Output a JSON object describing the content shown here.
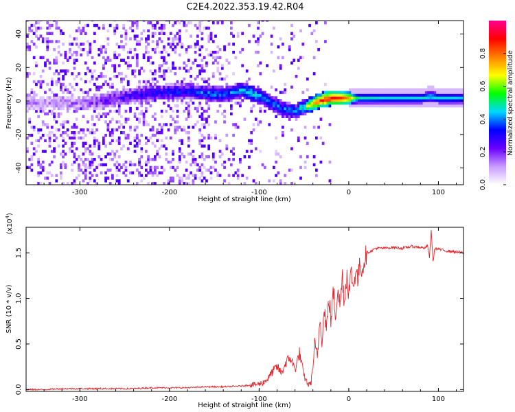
{
  "title": "C2E4.2022.353.19.42.R04",
  "chart_data": [
    {
      "type": "heatmap",
      "xlabel": "Height of straight line (km)",
      "ylabel": "Frequency (Hz)",
      "xlim": [
        -360,
        128
      ],
      "ylim": [
        -50,
        48
      ],
      "xticks": [
        -300,
        -200,
        -100,
        0,
        100
      ],
      "yticks": [
        -40,
        -20,
        0,
        20,
        40
      ],
      "xtick_labels": [
        "-300",
        "-200",
        "-100",
        "0",
        "100"
      ],
      "ytick_labels": [
        "-40",
        "-20",
        "0",
        "20",
        "40"
      ],
      "ridge_x": [
        -330,
        -300,
        -280,
        -260,
        -240,
        -220,
        -200,
        -180,
        -160,
        -140,
        -120,
        -110,
        -100,
        -90,
        -80,
        -70,
        -60,
        -55,
        -50,
        -45,
        -40,
        -35,
        -30,
        -20,
        -10,
        0,
        10,
        20,
        40,
        60,
        80,
        90,
        100,
        110,
        128
      ],
      "ridge_y": [
        -2,
        -2,
        -1,
        1,
        3,
        4,
        5,
        5,
        4,
        3,
        6,
        4,
        2,
        -1,
        -4,
        -6,
        -7,
        -5,
        -4,
        -3,
        -2,
        -1,
        0,
        1,
        1,
        1,
        1,
        1,
        1,
        1,
        1,
        2,
        1,
        1,
        1
      ],
      "ridge_amplitude": [
        0.12,
        0.15,
        0.2,
        0.25,
        0.3,
        0.32,
        0.35,
        0.35,
        0.4,
        0.42,
        0.45,
        0.5,
        0.45,
        0.42,
        0.4,
        0.4,
        0.42,
        0.5,
        0.55,
        0.7,
        0.8,
        0.85,
        0.9,
        0.92,
        0.88,
        0.75,
        0.5,
        0.5,
        0.48,
        0.48,
        0.48,
        0.5,
        0.48,
        0.48,
        0.45
      ],
      "colorbar": {
        "label": "Normalized spectral amplitude",
        "range": [
          0,
          1
        ],
        "ticks": [
          0.0,
          0.2,
          0.4,
          0.6,
          0.8
        ],
        "tick_labels": [
          "0.0",
          "0.2",
          "0.4",
          "0.6",
          "0.8"
        ],
        "colors": [
          "#ffffff",
          "#c89cff",
          "#6a00ff",
          "#0000ff",
          "#00d8ff",
          "#00ff00",
          "#ffff00",
          "#ff8000",
          "#ff0000",
          "#ff0090"
        ]
      },
      "grid": false
    },
    {
      "type": "line",
      "xlabel": "Height of straight line (km)",
      "ylabel": "SNR (10 * v/v)",
      "y_multiplier": "(x10",
      "y_multiplier_exp": "4",
      "y_multiplier_close": ")",
      "xlim": [
        -360,
        128
      ],
      "ylim": [
        -0.02,
        1.78
      ],
      "xticks": [
        -300,
        -200,
        -100,
        0,
        100
      ],
      "yticks": [
        0.0,
        0.5,
        1.0,
        1.5
      ],
      "xtick_labels": [
        "-300",
        "-200",
        "-100",
        "0",
        "100"
      ],
      "ytick_labels": [
        "0.0",
        "0.5",
        "1.0",
        "1.5"
      ],
      "series": [
        {
          "color": "#e8242a",
          "x": [
            -360,
            -340,
            -320,
            -300,
            -280,
            -260,
            -240,
            -220,
            -200,
            -180,
            -160,
            -140,
            -120,
            -110,
            -100,
            -95,
            -90,
            -85,
            -80,
            -75,
            -70,
            -65,
            -60,
            -55,
            -50,
            -45,
            -42,
            -40,
            -38,
            -35,
            -32,
            -30,
            -27,
            -25,
            -22,
            -20,
            -17,
            -15,
            -12,
            -10,
            -7,
            -5,
            -2,
            0,
            3,
            5,
            8,
            10,
            13,
            15,
            18,
            20,
            25,
            30,
            40,
            50,
            60,
            70,
            80,
            85,
            88,
            90,
            92,
            94,
            96,
            100,
            110,
            120,
            128
          ],
          "values": [
            0.0,
            0.0,
            0.01,
            0.01,
            0.01,
            0.01,
            0.01,
            0.02,
            0.02,
            0.02,
            0.03,
            0.03,
            0.04,
            0.05,
            0.06,
            0.08,
            0.12,
            0.2,
            0.25,
            0.18,
            0.3,
            0.35,
            0.22,
            0.4,
            0.15,
            0.05,
            0.08,
            0.25,
            0.5,
            0.35,
            0.8,
            0.55,
            0.9,
            0.65,
            1.0,
            0.75,
            1.08,
            0.8,
            1.15,
            0.9,
            1.25,
            0.95,
            1.28,
            1.05,
            1.3,
            1.1,
            1.35,
            1.2,
            1.4,
            1.3,
            1.45,
            1.5,
            1.52,
            1.55,
            1.55,
            1.56,
            1.55,
            1.57,
            1.56,
            1.55,
            1.58,
            1.45,
            1.75,
            1.4,
            1.55,
            1.54,
            1.52,
            1.51,
            1.5
          ]
        }
      ],
      "grid": false
    }
  ]
}
